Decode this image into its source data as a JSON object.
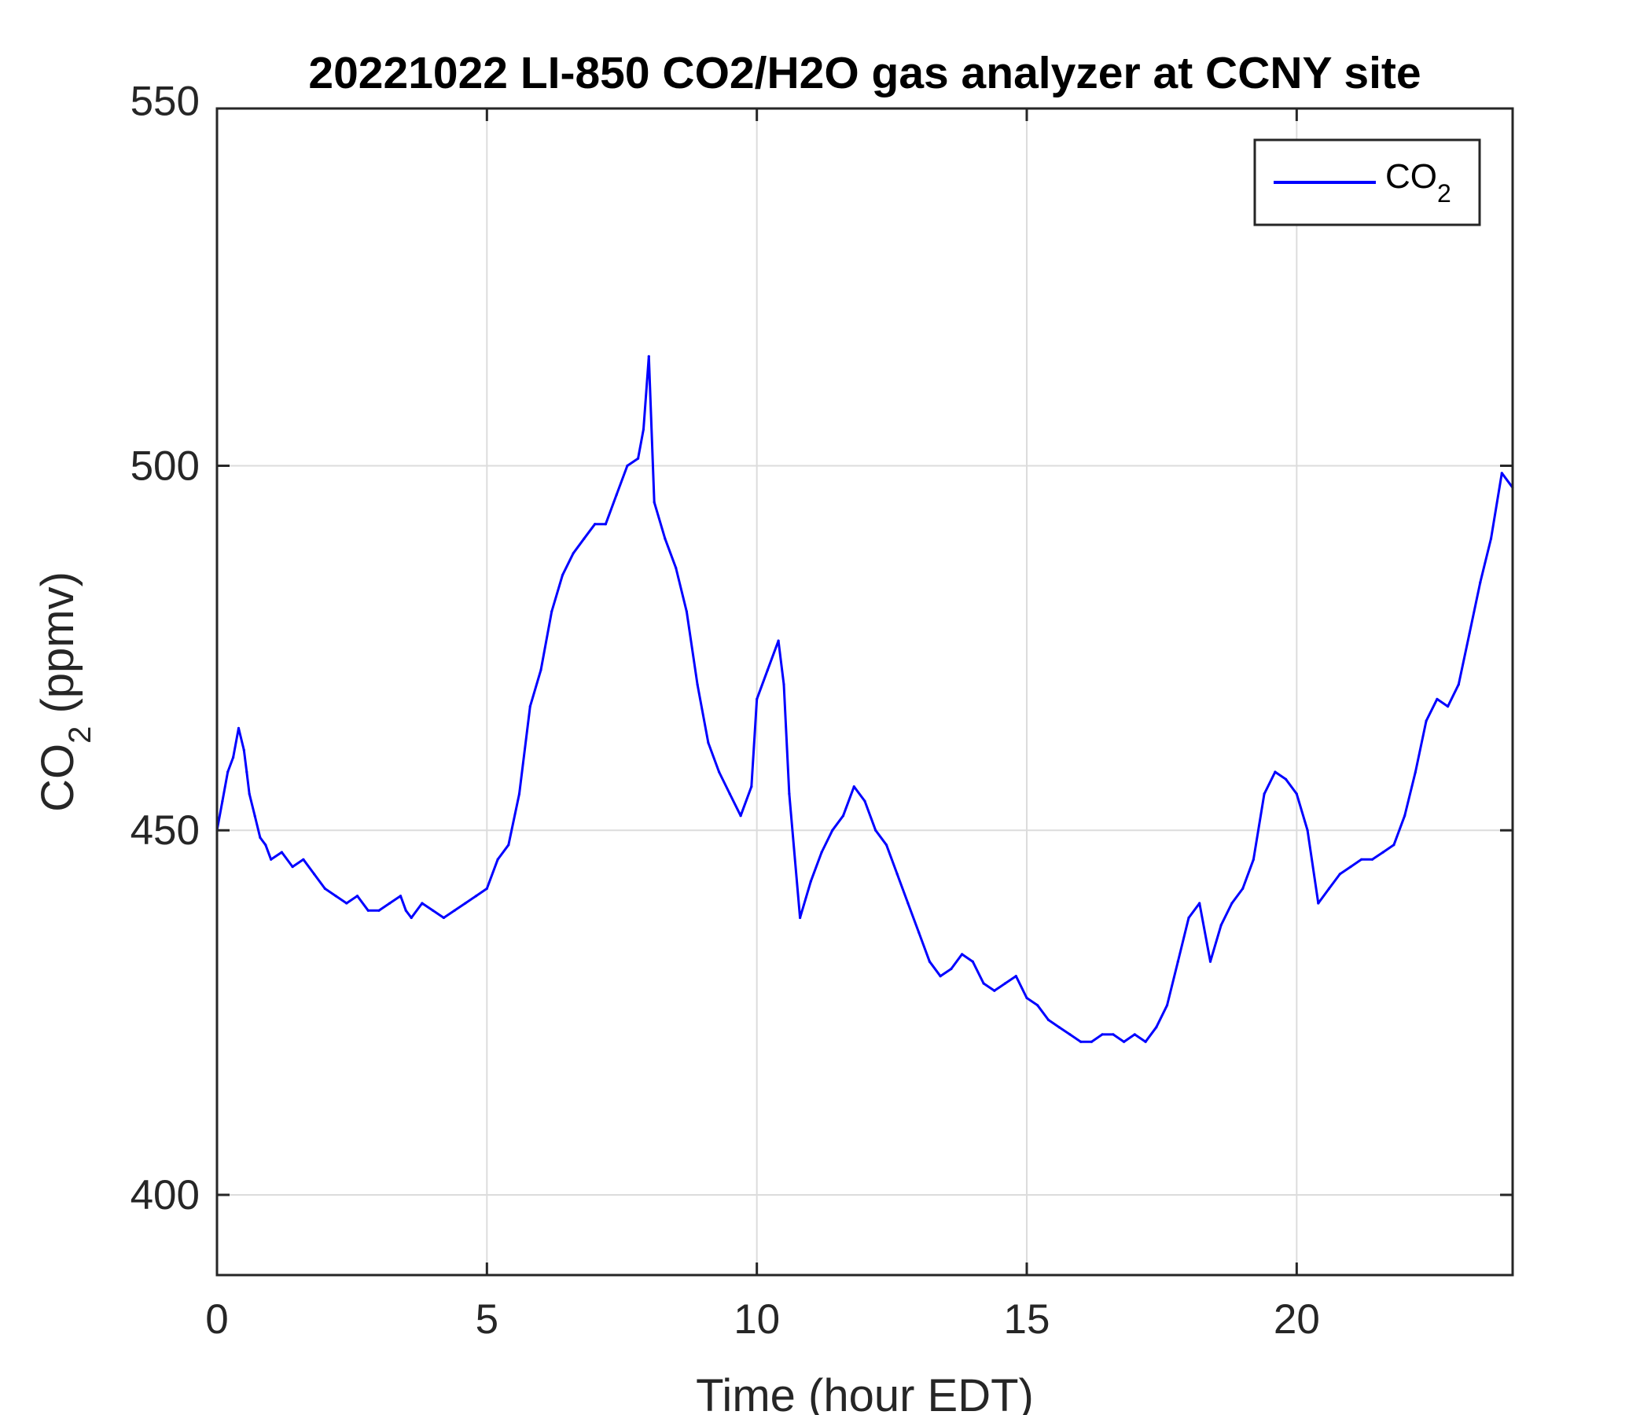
{
  "chart_data": {
    "type": "line",
    "title": "20221022 LI-850 CO2/H2O gas analyzer at CCNY site",
    "xlabel": "Time (hour EDT)",
    "ylabel": {
      "main": "CO",
      "sub": "2",
      "unit": " (ppmv)"
    },
    "xlim": [
      0,
      24
    ],
    "ylim": [
      389,
      549
    ],
    "xticks": [
      0,
      5,
      10,
      15,
      20
    ],
    "yticks": [
      400,
      450,
      500,
      550
    ],
    "grid": true,
    "legend_position": "top-right",
    "series": [
      {
        "name": {
          "main": "CO",
          "sub": "2"
        },
        "color": "#0000ff",
        "x": [
          0,
          0.1,
          0.2,
          0.3,
          0.4,
          0.5,
          0.55,
          0.6,
          0.7,
          0.8,
          0.9,
          1.0,
          1.2,
          1.4,
          1.6,
          1.8,
          2.0,
          2.2,
          2.4,
          2.6,
          2.8,
          3.0,
          3.2,
          3.4,
          3.5,
          3.6,
          3.8,
          4.0,
          4.2,
          4.4,
          4.6,
          4.8,
          5.0,
          5.2,
          5.4,
          5.6,
          5.8,
          6.0,
          6.2,
          6.4,
          6.6,
          6.8,
          7.0,
          7.2,
          7.4,
          7.6,
          7.8,
          7.9,
          8.0,
          8.1,
          8.3,
          8.5,
          8.7,
          8.9,
          9.1,
          9.3,
          9.5,
          9.7,
          9.9,
          10.0,
          10.2,
          10.4,
          10.5,
          10.6,
          10.8,
          11.0,
          11.2,
          11.4,
          11.6,
          11.8,
          12.0,
          12.2,
          12.4,
          12.6,
          12.8,
          13.0,
          13.2,
          13.4,
          13.6,
          13.8,
          14.0,
          14.2,
          14.4,
          14.6,
          14.8,
          15.0,
          15.2,
          15.4,
          15.6,
          15.8,
          16.0,
          16.2,
          16.4,
          16.6,
          16.8,
          17.0,
          17.2,
          17.4,
          17.6,
          17.8,
          18.0,
          18.2,
          18.4,
          18.6,
          18.8,
          19.0,
          19.2,
          19.4,
          19.6,
          19.8,
          20.0,
          20.2,
          20.4,
          20.6,
          20.8,
          21.0,
          21.2,
          21.4,
          21.6,
          21.8,
          22.0,
          22.2,
          22.4,
          22.6,
          22.8,
          23.0,
          23.2,
          23.4,
          23.6,
          23.8,
          24.0
        ],
        "y": [
          450,
          454,
          458,
          460,
          464,
          461,
          458,
          455,
          452,
          449,
          448,
          446,
          447,
          445,
          446,
          444,
          442,
          441,
          440,
          441,
          439,
          439,
          440,
          441,
          439,
          438,
          440,
          439,
          438,
          439,
          440,
          441,
          442,
          446,
          448,
          455,
          467,
          472,
          480,
          485,
          488,
          490,
          492,
          492,
          496,
          500,
          501,
          505,
          515,
          495,
          490,
          486,
          480,
          470,
          462,
          458,
          455,
          452,
          456,
          468,
          472,
          476,
          470,
          455,
          438,
          443,
          447,
          450,
          452,
          456,
          454,
          450,
          448,
          444,
          440,
          436,
          432,
          430,
          431,
          433,
          432,
          429,
          428,
          429,
          430,
          427,
          426,
          424,
          423,
          422,
          421,
          421,
          422,
          422,
          421,
          422,
          421,
          423,
          426,
          432,
          438,
          440,
          432,
          437,
          440,
          442,
          446,
          455,
          458,
          457,
          455,
          450,
          440,
          442,
          444,
          445,
          446,
          446,
          447,
          448,
          452,
          458,
          465,
          468,
          467,
          470,
          477,
          484,
          490,
          499,
          497
        ]
      }
    ]
  }
}
